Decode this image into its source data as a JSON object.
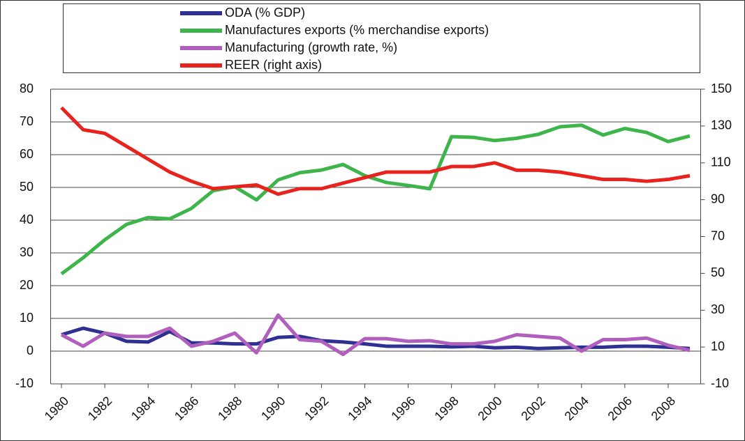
{
  "chart_data": {
    "type": "line",
    "x": [
      1980,
      1981,
      1982,
      1983,
      1984,
      1985,
      1986,
      1987,
      1988,
      1989,
      1990,
      1991,
      1992,
      1993,
      1994,
      1995,
      1996,
      1997,
      1998,
      1999,
      2000,
      2001,
      2002,
      2003,
      2004,
      2005,
      2006,
      2007,
      2008,
      2009
    ],
    "xlim": [
      1979.5,
      2009.5
    ],
    "xticks": [
      1980,
      1982,
      1984,
      1986,
      1988,
      1990,
      1992,
      1994,
      1996,
      1998,
      2000,
      2002,
      2004,
      2006,
      2008
    ],
    "ylim": [
      -10,
      80
    ],
    "yticks": [
      -10,
      0,
      10,
      20,
      30,
      40,
      50,
      60,
      70,
      80
    ],
    "y2lim": [
      -10,
      150
    ],
    "y2ticks": [
      -10,
      10,
      30,
      50,
      70,
      90,
      110,
      130,
      150
    ],
    "grid": true,
    "legend": "top",
    "series": [
      {
        "name": "ODA (% GDP)",
        "color": "#2e3192",
        "values": [
          5,
          7,
          5.5,
          3,
          2.8,
          6,
          2.5,
          2.5,
          2.2,
          2.2,
          4.2,
          4.5,
          3.2,
          2.8,
          2.2,
          1.5,
          1.5,
          1.5,
          1.3,
          1.5,
          1,
          1.2,
          0.8,
          1,
          1.2,
          1.2,
          1.5,
          1.5,
          1.2,
          0.8
        ]
      },
      {
        "name": "Manufactures exports (% merchandise exports)",
        "color": "#3db54a",
        "values": [
          23.6,
          28.5,
          34,
          38.7,
          40.8,
          40.4,
          43.6,
          49,
          50.2,
          46.2,
          52.3,
          54.5,
          55.3,
          57,
          53.6,
          51.5,
          50.6,
          49.6,
          65.5,
          65.3,
          64.3,
          65,
          66.2,
          68.5,
          69,
          66,
          68,
          66.8,
          64,
          65.7
        ]
      },
      {
        "name": "Manufacturing  (growth rate, %)",
        "color": "#b05fbd",
        "values": [
          5,
          1.5,
          5.5,
          4.5,
          4.5,
          7,
          1.5,
          3,
          5.5,
          -0.5,
          11,
          3.5,
          3,
          -1,
          3.8,
          3.8,
          3,
          3.2,
          2.2,
          2.2,
          3,
          5,
          4.5,
          4,
          0,
          3.5,
          3.5,
          4,
          1.8,
          0.2
        ]
      },
      {
        "name": "REER (right axis)",
        "color": "#e8231e",
        "axis": "y2",
        "values": [
          140,
          128,
          126,
          119,
          112,
          105,
          100,
          96,
          97,
          98,
          93,
          96,
          96,
          99,
          102,
          105,
          105,
          105,
          108,
          108,
          110,
          106,
          106,
          105,
          103,
          101,
          101,
          100,
          101,
          103
        ]
      }
    ]
  }
}
